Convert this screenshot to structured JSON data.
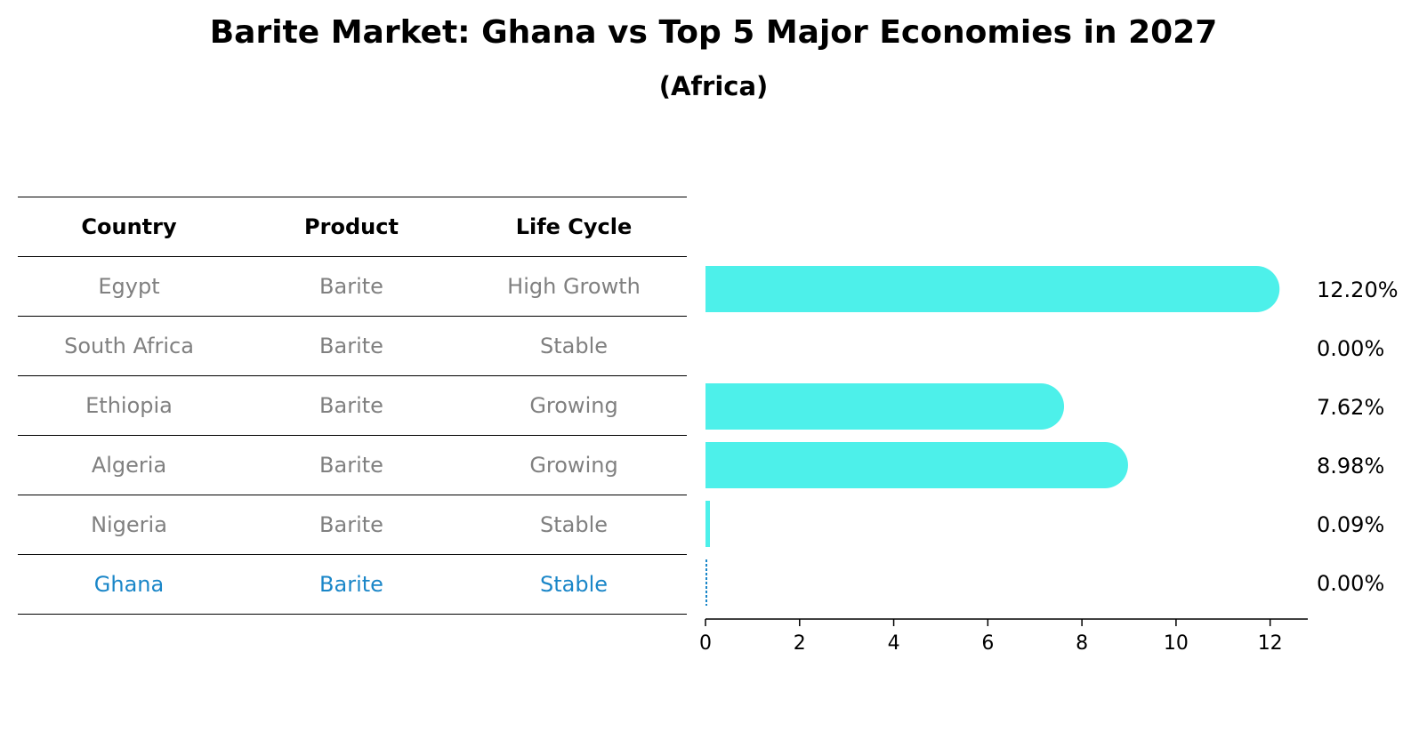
{
  "chart_data": {
    "type": "bar",
    "orientation": "horizontal",
    "title": "Barite Market: Ghana vs Top 5 Major Economies in 2027",
    "subtitle": "(Africa)",
    "table": {
      "headers": [
        "Country",
        "Product",
        "Life Cycle"
      ],
      "rows": [
        [
          "Egypt",
          "Barite",
          "High Growth"
        ],
        [
          "South Africa",
          "Barite",
          "Stable"
        ],
        [
          "Ethiopia",
          "Barite",
          "Growing"
        ],
        [
          "Algeria",
          "Barite",
          "Growing"
        ],
        [
          "Nigeria",
          "Barite",
          "Stable"
        ],
        [
          "Ghana",
          "Barite",
          "Stable"
        ]
      ],
      "highlight_row": "Ghana"
    },
    "categories": [
      "Egypt",
      "South Africa",
      "Ethiopia",
      "Algeria",
      "Nigeria",
      "Ghana"
    ],
    "values": [
      12.2,
      0.0,
      7.62,
      8.98,
      0.09,
      0.0
    ],
    "value_labels": [
      "12.20%",
      "0.00%",
      "7.62%",
      "8.98%",
      "0.09%",
      "0.00%"
    ],
    "xlim": [
      0,
      12.8
    ],
    "xticks": [
      0,
      2,
      4,
      6,
      8,
      10,
      12
    ],
    "grid": false,
    "colors": {
      "bar": "#4df0ea",
      "highlight": "#1a86c8",
      "muted_text": "#808080"
    }
  }
}
